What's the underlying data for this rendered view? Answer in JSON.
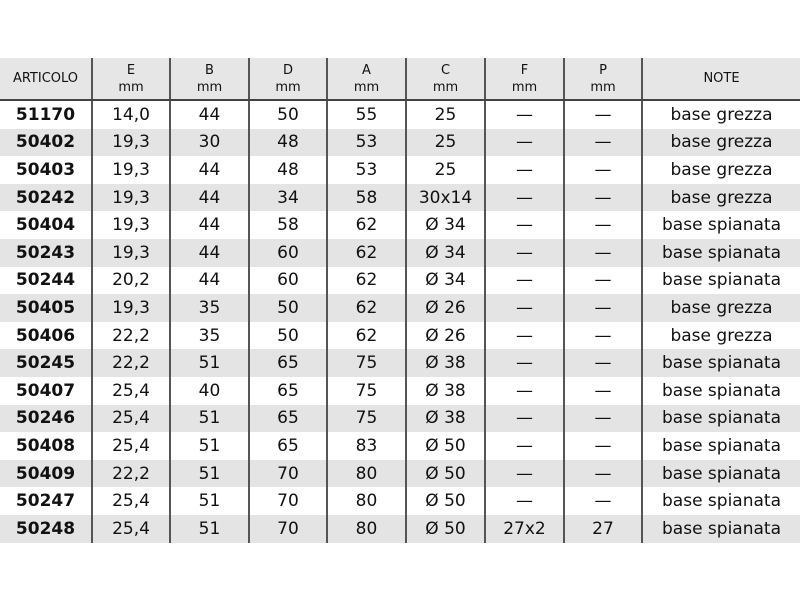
{
  "headers": [
    {
      "name": "ARTICOLO",
      "unit": ""
    },
    {
      "name": "E",
      "unit": "mm"
    },
    {
      "name": "B",
      "unit": "mm"
    },
    {
      "name": "D",
      "unit": "mm"
    },
    {
      "name": "A",
      "unit": "mm"
    },
    {
      "name": "C",
      "unit": "mm"
    },
    {
      "name": "F",
      "unit": "mm"
    },
    {
      "name": "P",
      "unit": "mm"
    },
    {
      "name": "NOTE",
      "unit": ""
    }
  ],
  "rows": [
    [
      "51170",
      "14,0",
      "44",
      "50",
      "55",
      "25",
      "—",
      "—",
      "base grezza"
    ],
    [
      "50402",
      "19,3",
      "30",
      "48",
      "53",
      "25",
      "—",
      "—",
      "base grezza"
    ],
    [
      "50403",
      "19,3",
      "44",
      "48",
      "53",
      "25",
      "—",
      "—",
      "base grezza"
    ],
    [
      "50242",
      "19,3",
      "44",
      "34",
      "58",
      "30x14",
      "—",
      "—",
      "base grezza"
    ],
    [
      "50404",
      "19,3",
      "44",
      "58",
      "62",
      "Ø 34",
      "—",
      "—",
      "base spianata"
    ],
    [
      "50243",
      "19,3",
      "44",
      "60",
      "62",
      "Ø 34",
      "—",
      "—",
      "base spianata"
    ],
    [
      "50244",
      "20,2",
      "44",
      "60",
      "62",
      "Ø 34",
      "—",
      "—",
      "base spianata"
    ],
    [
      "50405",
      "19,3",
      "35",
      "50",
      "62",
      "Ø 26",
      "—",
      "—",
      "base grezza"
    ],
    [
      "50406",
      "22,2",
      "35",
      "50",
      "62",
      "Ø 26",
      "—",
      "—",
      "base grezza"
    ],
    [
      "50245",
      "22,2",
      "51",
      "65",
      "75",
      "Ø 38",
      "—",
      "—",
      "base spianata"
    ],
    [
      "50407",
      "25,4",
      "40",
      "65",
      "75",
      "Ø 38",
      "—",
      "—",
      "base spianata"
    ],
    [
      "50246",
      "25,4",
      "51",
      "65",
      "75",
      "Ø 38",
      "—",
      "—",
      "base spianata"
    ],
    [
      "50408",
      "25,4",
      "51",
      "65",
      "83",
      "Ø 50",
      "—",
      "—",
      "base spianata"
    ],
    [
      "50409",
      "22,2",
      "51",
      "70",
      "80",
      "Ø 50",
      "—",
      "—",
      "base spianata"
    ],
    [
      "50247",
      "25,4",
      "51",
      "70",
      "80",
      "Ø 50",
      "—",
      "—",
      "base spianata"
    ],
    [
      "50248",
      "25,4",
      "51",
      "70",
      "80",
      "Ø 50",
      "27x2",
      "27",
      "base spianata"
    ]
  ]
}
